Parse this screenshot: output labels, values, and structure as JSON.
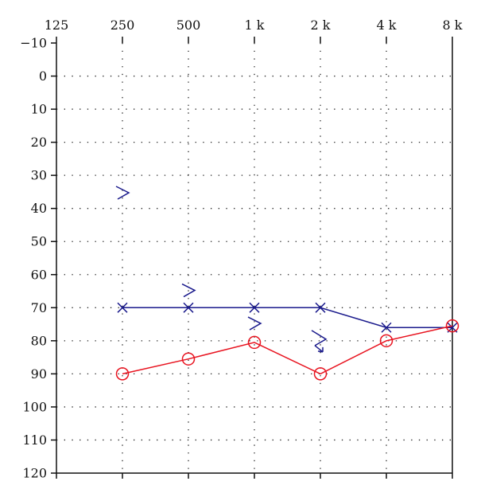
{
  "chart_data": {
    "type": "line",
    "title": "",
    "xlabel": "",
    "ylabel": "",
    "x_tick_labels": [
      "125",
      "250",
      "500",
      "1 k",
      "2 k",
      "4 k",
      "8 k"
    ],
    "y_tick_labels": [
      "−10",
      "0",
      "10",
      "20",
      "30",
      "40",
      "50",
      "60",
      "70",
      "80",
      "90",
      "100",
      "110",
      "120"
    ],
    "y_ticks": [
      -10,
      0,
      10,
      20,
      30,
      40,
      50,
      60,
      70,
      80,
      90,
      100,
      110,
      120
    ],
    "x_scale": "log",
    "ylim": [
      -10,
      120
    ],
    "y_inverted": true,
    "grid": true,
    "series": [
      {
        "marker": "cross",
        "color": "#1a1a8c",
        "connected": true,
        "x": [
          250,
          500,
          1000,
          2000,
          4000,
          8000
        ],
        "y": [
          70,
          70,
          70,
          70,
          76,
          76
        ]
      },
      {
        "marker": "circle",
        "color": "#e8131f",
        "connected": true,
        "x": [
          250,
          500,
          1000,
          2000,
          4000,
          8000
        ],
        "y": [
          90,
          85.5,
          80.5,
          90,
          80,
          75.5
        ]
      },
      {
        "marker": "greater-than",
        "color": "#1a1a8c",
        "connected": false,
        "x": [
          250,
          500,
          1000
        ],
        "y": [
          35.5,
          65,
          75
        ]
      },
      {
        "marker": "greater-than-arrow",
        "color": "#1a1a8c",
        "connected": false,
        "x": [
          2000
        ],
        "y": [
          80
        ]
      }
    ]
  }
}
